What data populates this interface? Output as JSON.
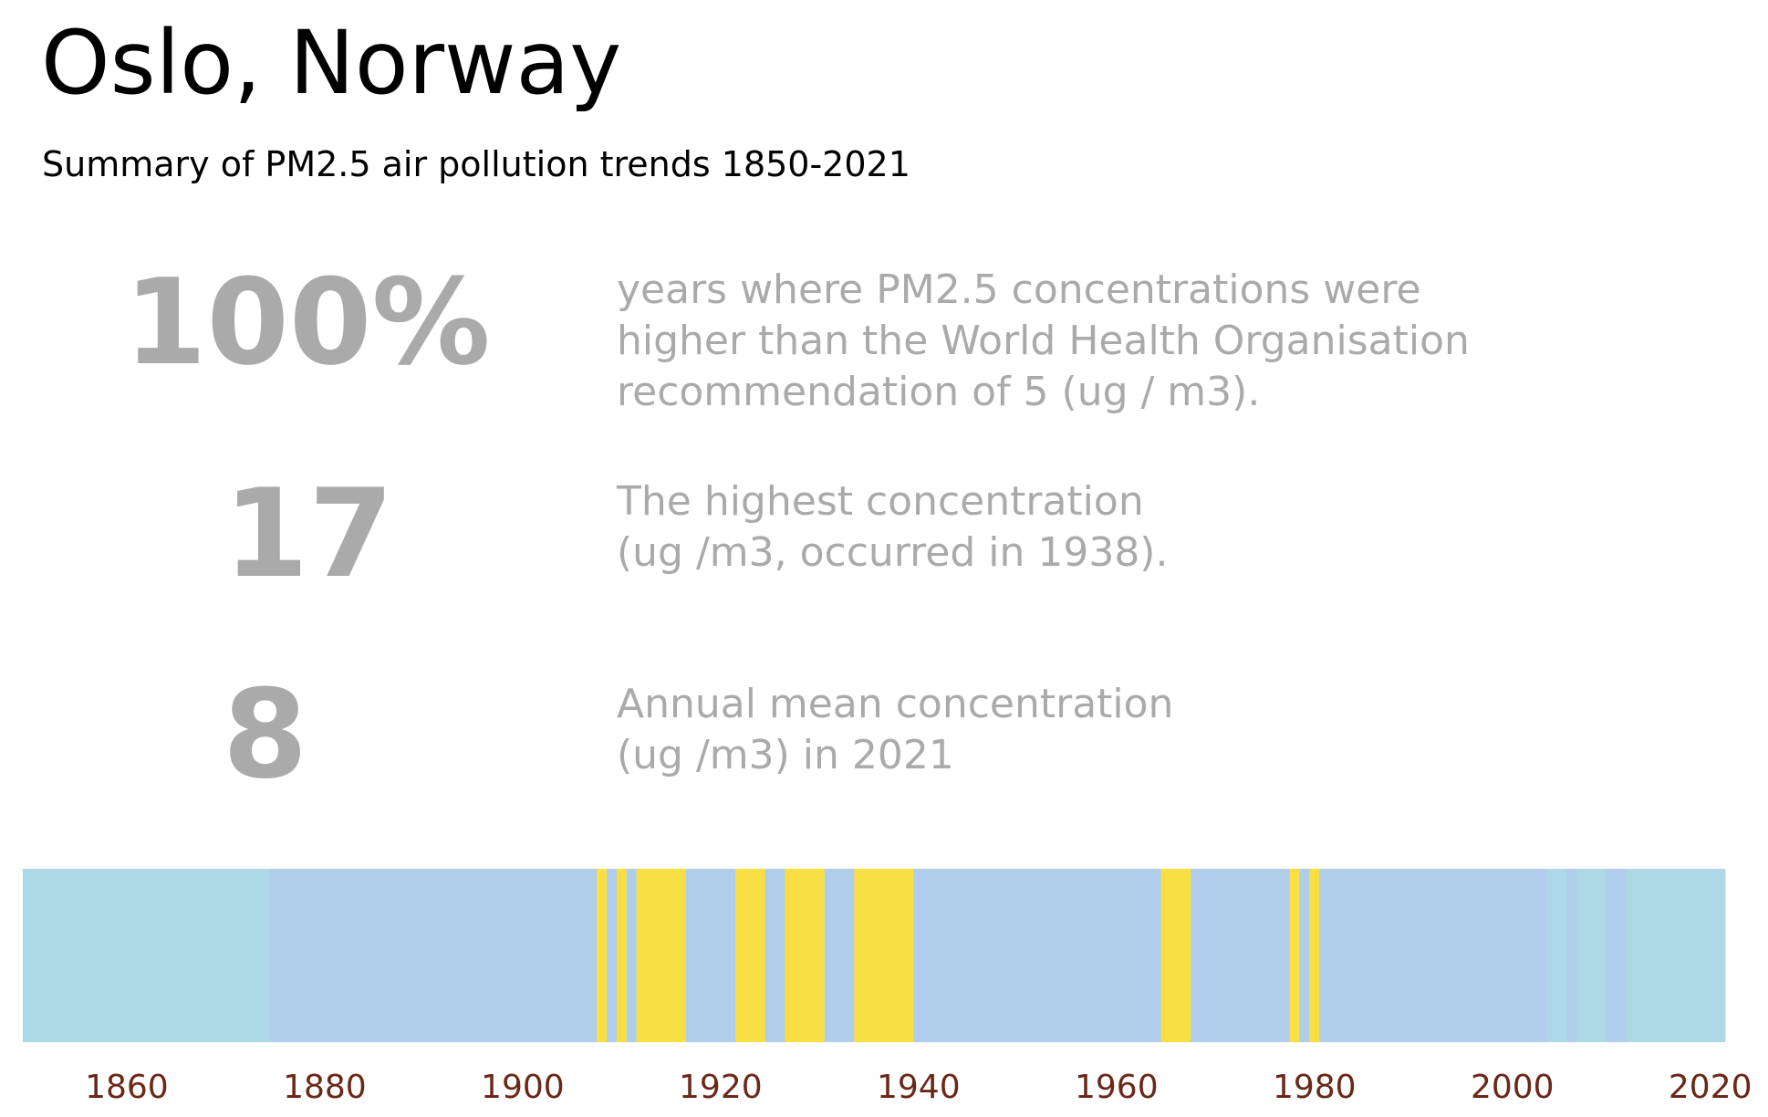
{
  "header": {
    "title": "Oslo, Norway",
    "subtitle": "Summary of PM2.5 air pollution trends 1850-2021"
  },
  "stats": [
    {
      "value": "100%",
      "description_lines": [
        "years where PM2.5 concentrations were",
        "higher than the World Health Organisation",
        "recommendation of 5 (ug / m3)."
      ]
    },
    {
      "value": "17",
      "description_lines": [
        "The highest concentration",
        "(ug /m3, occurred in 1938)."
      ]
    },
    {
      "value": "8",
      "description_lines": [
        "Annual mean concentration",
        "(ug /m3) in 2021"
      ]
    }
  ],
  "colors": {
    "stat_text": "#aaaaaa",
    "tick_label": "#6b2718",
    "category_colors": {
      "low": "#add8e6",
      "medium": "#b0cdec",
      "high": "#f8e044"
    }
  },
  "chart_data": {
    "type": "heatmap",
    "title": "",
    "xlabel": "",
    "ylabel": "",
    "xlim": [
      1849.5,
      2021.5
    ],
    "xticks": [
      1860,
      1880,
      1900,
      1920,
      1940,
      1960,
      1980,
      2000,
      2020
    ],
    "grid": false,
    "legend": "none",
    "segments": [
      {
        "start": 1850,
        "end": 1874,
        "category": "low"
      },
      {
        "start": 1875,
        "end": 1876,
        "category": "medium"
      },
      {
        "start": 1877,
        "end": 1907,
        "category": "medium"
      },
      {
        "start": 1908,
        "end": 1908,
        "category": "high"
      },
      {
        "start": 1909,
        "end": 1909,
        "category": "medium"
      },
      {
        "start": 1910,
        "end": 1910,
        "category": "high"
      },
      {
        "start": 1911,
        "end": 1911,
        "category": "medium"
      },
      {
        "start": 1912,
        "end": 1916,
        "category": "high"
      },
      {
        "start": 1917,
        "end": 1921,
        "category": "medium"
      },
      {
        "start": 1922,
        "end": 1924,
        "category": "high"
      },
      {
        "start": 1925,
        "end": 1926,
        "category": "medium"
      },
      {
        "start": 1927,
        "end": 1930,
        "category": "high"
      },
      {
        "start": 1931,
        "end": 1933,
        "category": "medium"
      },
      {
        "start": 1934,
        "end": 1939,
        "category": "high"
      },
      {
        "start": 1940,
        "end": 1964,
        "category": "medium"
      },
      {
        "start": 1965,
        "end": 1967,
        "category": "high"
      },
      {
        "start": 1968,
        "end": 1977,
        "category": "medium"
      },
      {
        "start": 1978,
        "end": 1978,
        "category": "high"
      },
      {
        "start": 1979,
        "end": 1979,
        "category": "medium"
      },
      {
        "start": 1980,
        "end": 1980,
        "category": "high"
      },
      {
        "start": 1981,
        "end": 2003,
        "category": "medium"
      },
      {
        "start": 2004,
        "end": 2005,
        "category": "low"
      },
      {
        "start": 2006,
        "end": 2006,
        "category": "medium"
      },
      {
        "start": 2007,
        "end": 2009,
        "category": "low"
      },
      {
        "start": 2010,
        "end": 2011,
        "category": "medium"
      },
      {
        "start": 2012,
        "end": 2021,
        "category": "low"
      }
    ]
  }
}
